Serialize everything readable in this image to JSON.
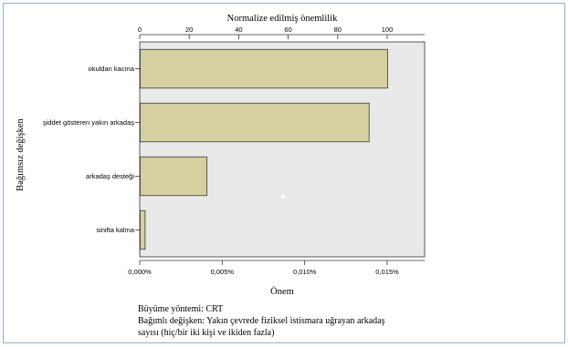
{
  "chart_data": {
    "type": "bar",
    "orientation": "horizontal",
    "top_axis": {
      "title": "Normalize edilmiş önemlilik",
      "ticks": [
        0,
        20,
        40,
        60,
        80,
        100
      ],
      "range": [
        0,
        114
      ]
    },
    "bottom_axis": {
      "title": "Önem",
      "ticks": [
        "0,000%",
        "0,005%",
        "0,010%",
        "0,015%"
      ],
      "tick_values": [
        0,
        0.005,
        0.01,
        0.015
      ]
    },
    "ylabel": "Bağımsız değişken",
    "categories": [
      "okuldan kacma",
      "şiddet gösteren yakın arkadaş",
      "arkadaş desteği",
      "sinifta kalma"
    ],
    "values": [
      100,
      92.5,
      27,
      2
    ],
    "notes": {
      "growth": "Büyüme yöntemi: CRT",
      "dependent_line1": "Bağımlı değişken: Yakın çevrede fiziksel istismara  uğrayan arkadaş",
      "dependent_line2": "sayısı (hiç/bir iki kişi ve ikiden fazla)"
    },
    "colors": {
      "bar_fill": "#d4d0a0",
      "bar_stroke": "#3a3a3a",
      "plot_bg": "#e9e9e9",
      "frame_border": "#8fb3d3"
    }
  }
}
